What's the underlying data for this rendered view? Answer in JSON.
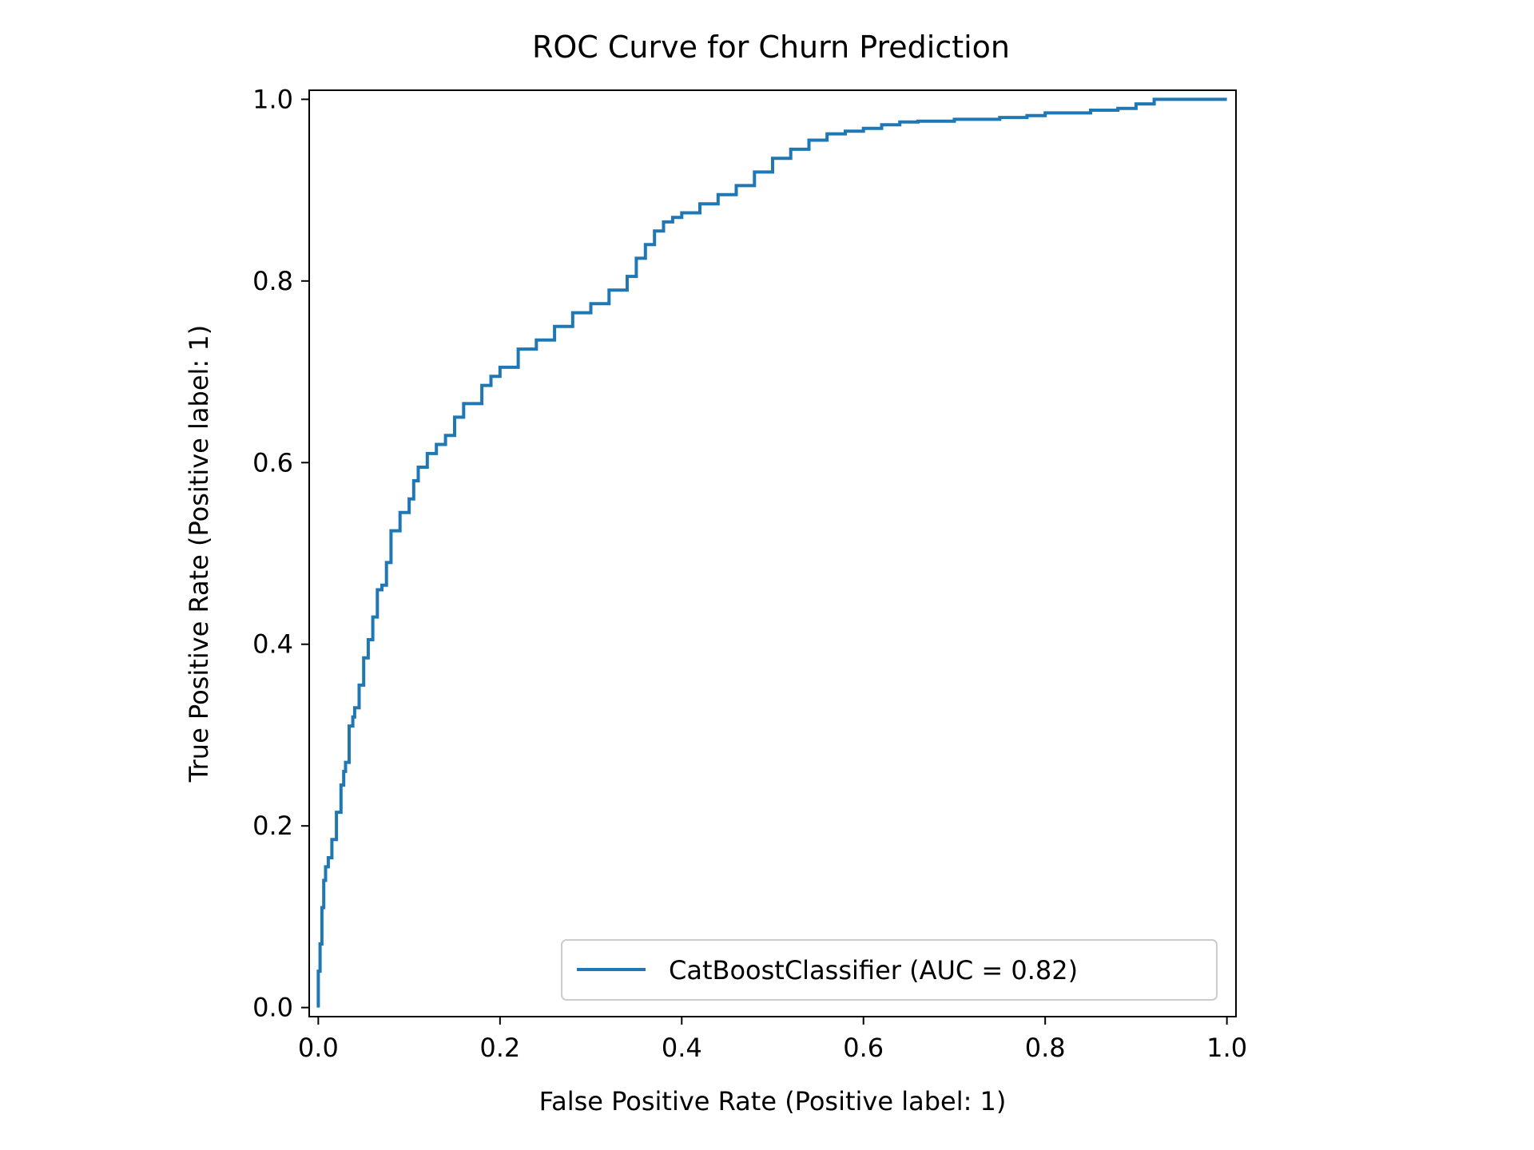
{
  "chart_data": {
    "type": "line",
    "title": "ROC Curve for Churn Prediction",
    "xlabel": "False Positive Rate (Positive label: 1)",
    "ylabel": "True Positive Rate (Positive label: 1)",
    "xlim": [
      -0.01,
      1.01
    ],
    "ylim": [
      -0.01,
      1.01
    ],
    "xticks": [
      0.0,
      0.2,
      0.4,
      0.6,
      0.8,
      1.0
    ],
    "xtick_labels": [
      "0.0",
      "0.2",
      "0.4",
      "0.6",
      "0.8",
      "1.0"
    ],
    "yticks": [
      0.0,
      0.2,
      0.4,
      0.6,
      0.8,
      1.0
    ],
    "ytick_labels": [
      "0.0",
      "0.2",
      "0.4",
      "0.6",
      "0.8",
      "1.0"
    ],
    "grid": false,
    "legend_position": "lower-right",
    "series": [
      {
        "name": "CatBoostClassifier (AUC = 0.82)",
        "color": "#1f77b4",
        "x": [
          0.0,
          0.0,
          0.002,
          0.004,
          0.006,
          0.008,
          0.011,
          0.015,
          0.02,
          0.025,
          0.028,
          0.03,
          0.034,
          0.038,
          0.04,
          0.045,
          0.05,
          0.055,
          0.06,
          0.065,
          0.07,
          0.075,
          0.08,
          0.09,
          0.1,
          0.105,
          0.11,
          0.12,
          0.13,
          0.14,
          0.15,
          0.16,
          0.18,
          0.19,
          0.2,
          0.22,
          0.24,
          0.26,
          0.28,
          0.3,
          0.32,
          0.34,
          0.35,
          0.36,
          0.37,
          0.38,
          0.39,
          0.4,
          0.42,
          0.44,
          0.46,
          0.48,
          0.5,
          0.52,
          0.54,
          0.56,
          0.58,
          0.6,
          0.62,
          0.64,
          0.66,
          0.7,
          0.75,
          0.78,
          0.8,
          0.85,
          0.88,
          0.9,
          0.92,
          0.95,
          1.0
        ],
        "y": [
          0.0,
          0.04,
          0.07,
          0.11,
          0.14,
          0.155,
          0.165,
          0.185,
          0.215,
          0.245,
          0.26,
          0.27,
          0.31,
          0.32,
          0.33,
          0.355,
          0.385,
          0.405,
          0.43,
          0.46,
          0.465,
          0.49,
          0.525,
          0.545,
          0.56,
          0.58,
          0.595,
          0.61,
          0.62,
          0.63,
          0.65,
          0.665,
          0.685,
          0.695,
          0.705,
          0.725,
          0.735,
          0.75,
          0.765,
          0.775,
          0.79,
          0.805,
          0.825,
          0.84,
          0.855,
          0.865,
          0.87,
          0.875,
          0.885,
          0.895,
          0.905,
          0.92,
          0.935,
          0.945,
          0.955,
          0.962,
          0.965,
          0.968,
          0.972,
          0.975,
          0.976,
          0.978,
          0.98,
          0.982,
          0.985,
          0.988,
          0.99,
          0.995,
          1.0,
          1.0,
          1.0
        ]
      }
    ]
  }
}
